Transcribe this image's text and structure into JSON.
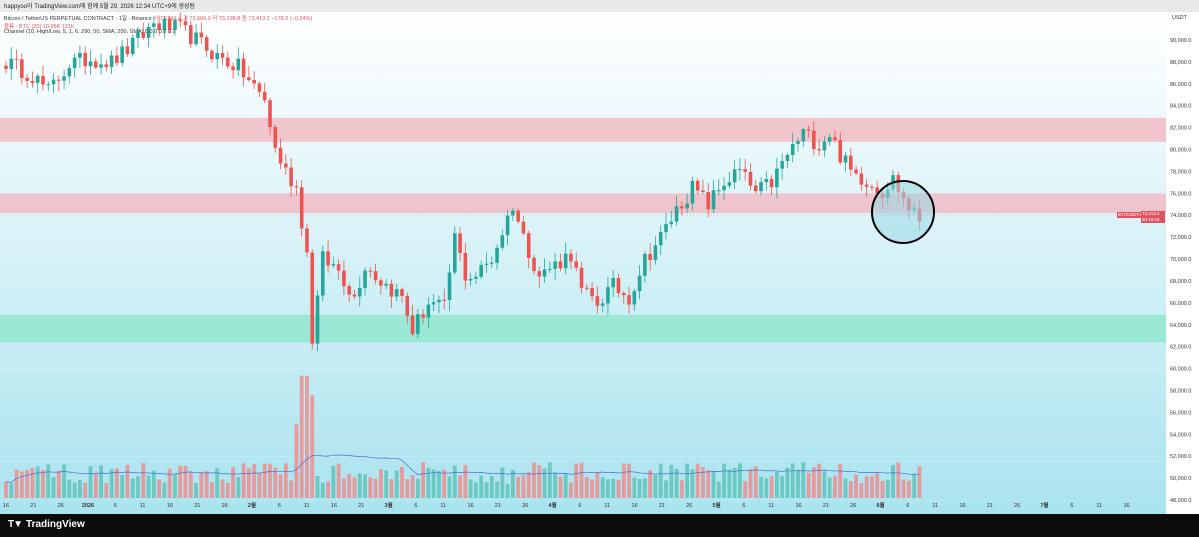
{
  "header": {
    "text": "happyoo이 TradingView.com에 함께 5월 29, 2026 12:34 UTC+9에 생성됨"
  },
  "legend": {
    "symbol_line": "Bitcoin / TetherUS PERPETUAL CONTRACT · 1일 · Binance",
    "ohlc": "시 73,591.4  고 73,666.0  저 73,198.8  종 73,413.2  −178.2 (−0.24%)",
    "volume_line": "볼륨 · BTC (20)  10.95K  121K",
    "channel_line": "Channel (10, High/Low, 5, 1, 6, 290, 50, SMA, 200, SMA)  0  0.0  0.0  0.0"
  },
  "price_axis": {
    "currency": "USDT",
    "last_price": "73,413.2",
    "countdown": "20:18:03",
    "symbol_label": "BTCUSDT.P"
  },
  "brand": {
    "icon": "tradingview-logo-icon",
    "name": "TradingView"
  },
  "colors": {
    "up": "#26a69a",
    "down": "#ef5350",
    "resistance_zone": "#f2b8c0",
    "support_zone": "#8ee6cc",
    "highlight_circle": "#9ad8e5",
    "volume_ma": "#4a6fd6"
  },
  "chart_data": {
    "type": "candlestick",
    "title": "",
    "xlabel": "",
    "ylabel": "",
    "ylim": [
      46000,
      92000
    ],
    "x_tick_labels": [
      "16",
      "21",
      "26",
      "2026",
      "6",
      "11",
      "16",
      "21",
      "26",
      "2월",
      "6",
      "11",
      "16",
      "21",
      "3월",
      "6",
      "11",
      "16",
      "21",
      "26",
      "4월",
      "6",
      "11",
      "16",
      "21",
      "26",
      "5월",
      "6",
      "11",
      "16",
      "21",
      "26",
      "6월",
      "6",
      "11",
      "16",
      "21",
      "26",
      "7월",
      "6",
      "11",
      "16"
    ],
    "y_tick_labels": [
      "48,000.0",
      "50,000.0",
      "52,000.0",
      "54,000.0",
      "56,000.0",
      "58,000.0",
      "60,000.0",
      "62,000.0",
      "64,000.0",
      "66,000.0",
      "68,000.0",
      "70,000.0",
      "72,000.0",
      "74,000.0",
      "76,000.0",
      "78,000.0",
      "80,000.0",
      "82,000.0",
      "84,000.0",
      "86,000.0",
      "88,000.0",
      "90,000.0"
    ],
    "zones": [
      {
        "from": 80700,
        "to": 82900,
        "kind": "resistance"
      },
      {
        "from": 74200,
        "to": 76000,
        "kind": "resistance"
      },
      {
        "from": 62400,
        "to": 64900,
        "kind": "support"
      }
    ],
    "anchors": [
      [
        0,
        88000,
        "flat"
      ],
      [
        5,
        86800,
        "flat"
      ],
      [
        8,
        85300,
        "flat"
      ],
      [
        12,
        87800,
        "flat"
      ],
      [
        16,
        88300,
        "flat"
      ],
      [
        20,
        88000,
        "flat"
      ],
      [
        24,
        89500,
        "flat"
      ],
      [
        28,
        91500,
        "flat"
      ],
      [
        33,
        91000,
        "flat"
      ],
      [
        36,
        90000,
        "flat"
      ],
      [
        40,
        88500,
        "flat"
      ],
      [
        44,
        87500,
        "flat"
      ],
      [
        49,
        84500,
        "flat"
      ],
      [
        51,
        80000,
        "flat"
      ],
      [
        53,
        78000,
        "flat"
      ],
      [
        55,
        76500,
        "flat"
      ],
      [
        57,
        70500,
        "flat"
      ],
      [
        58,
        62800,
        "flat"
      ],
      [
        60,
        70000,
        "flat"
      ],
      [
        63,
        69000,
        "flat"
      ],
      [
        66,
        66500,
        "flat"
      ],
      [
        68,
        69500,
        "flat"
      ],
      [
        71,
        68000,
        "flat"
      ],
      [
        75,
        66500,
        "flat"
      ],
      [
        77,
        63500,
        "flat"
      ],
      [
        80,
        66000,
        "flat"
      ],
      [
        83,
        65500,
        "flat"
      ],
      [
        85,
        72000,
        "flat"
      ],
      [
        87,
        68500,
        "flat"
      ],
      [
        89,
        68500,
        "flat"
      ],
      [
        92,
        70000,
        "flat"
      ],
      [
        96,
        75000,
        "flat"
      ],
      [
        98,
        72000,
        "flat"
      ],
      [
        101,
        68500,
        "flat"
      ],
      [
        104,
        69500,
        "flat"
      ],
      [
        107,
        70500,
        "flat"
      ],
      [
        109,
        67000,
        "flat"
      ],
      [
        112,
        66000,
        "flat"
      ],
      [
        115,
        67500,
        "flat"
      ],
      [
        118,
        66500,
        "flat"
      ],
      [
        121,
        70000,
        "flat"
      ],
      [
        124,
        72000,
        "flat"
      ],
      [
        127,
        74500,
        "flat"
      ],
      [
        130,
        76500,
        "flat"
      ],
      [
        133,
        75000,
        "flat"
      ],
      [
        136,
        77000,
        "flat"
      ],
      [
        139,
        78000,
        "flat"
      ],
      [
        142,
        76000,
        "flat"
      ],
      [
        145,
        77000,
        "flat"
      ],
      [
        148,
        79500,
        "flat"
      ],
      [
        151,
        81500,
        "flat"
      ],
      [
        154,
        80500,
        "flat"
      ],
      [
        156,
        81500,
        "flat"
      ],
      [
        158,
        79500,
        "flat"
      ],
      [
        160,
        78000,
        "flat"
      ],
      [
        163,
        77200,
        "flat"
      ],
      [
        166,
        76200,
        "flat"
      ],
      [
        168,
        77300,
        "flat"
      ],
      [
        170,
        75500,
        "flat"
      ],
      [
        172,
        74000,
        "flat"
      ],
      [
        173,
        73413,
        "flat"
      ]
    ]
  }
}
